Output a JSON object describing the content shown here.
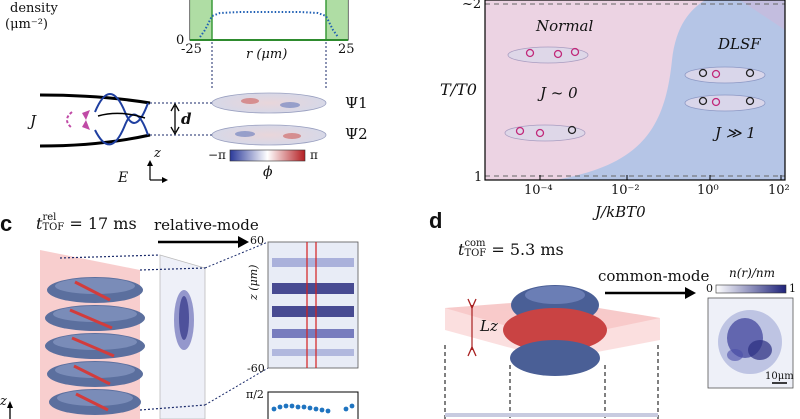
{
  "panel_a": {
    "density_label": "density",
    "density_unit": "(μm⁻²)",
    "y_tick_zero": "0",
    "x_tick_left": "-25",
    "x_tick_right": "25",
    "x_label": "r (μm)",
    "J_label": "J",
    "d_label": "d",
    "psi1": "Ψ1",
    "psi2": "Ψ2",
    "z_axis": "z",
    "E_axis": "E",
    "phase_min": "−π",
    "phase_max": "π",
    "phi_label": "ϕ"
  },
  "panel_b": {
    "y_label": "T/T0",
    "y_tick_top": "~2",
    "y_tick_bottom": "1",
    "x_label": "J/kBT0",
    "x_ticks": [
      "10⁻⁴",
      "10⁻²",
      "10⁰",
      "10²"
    ],
    "region_normal": "Normal",
    "region_dlsf": "DLSF",
    "normal_J": "J ~ 0",
    "dlsf_J": "J ≫ 1",
    "colors": {
      "normal": "#ecd3e3",
      "dlsf": "#b5c5e6",
      "corner": "#c9b9dc"
    }
  },
  "panel_c": {
    "letter": "c",
    "tof_label": "t",
    "tof_superscript": "rel",
    "tof_subscript": "TOF",
    "tof_value": "= 17 ms",
    "mode_label": "relative-mode",
    "y_tick_top": "60",
    "y_tick_bottom": "-60",
    "z_label": "z (μm)",
    "phase_tick": "π/2",
    "z_axis": "z"
  },
  "panel_d": {
    "letter": "d",
    "tof_label": "t",
    "tof_superscript": "com",
    "tof_subscript": "TOF",
    "tof_value": "= 5.3 ms",
    "mode_label": "common-mode",
    "lz_label": "Lz",
    "colorbar_title": "n(r)/nm",
    "colorbar_min": "0",
    "colorbar_max": "1",
    "scale_bar": "10μm"
  }
}
